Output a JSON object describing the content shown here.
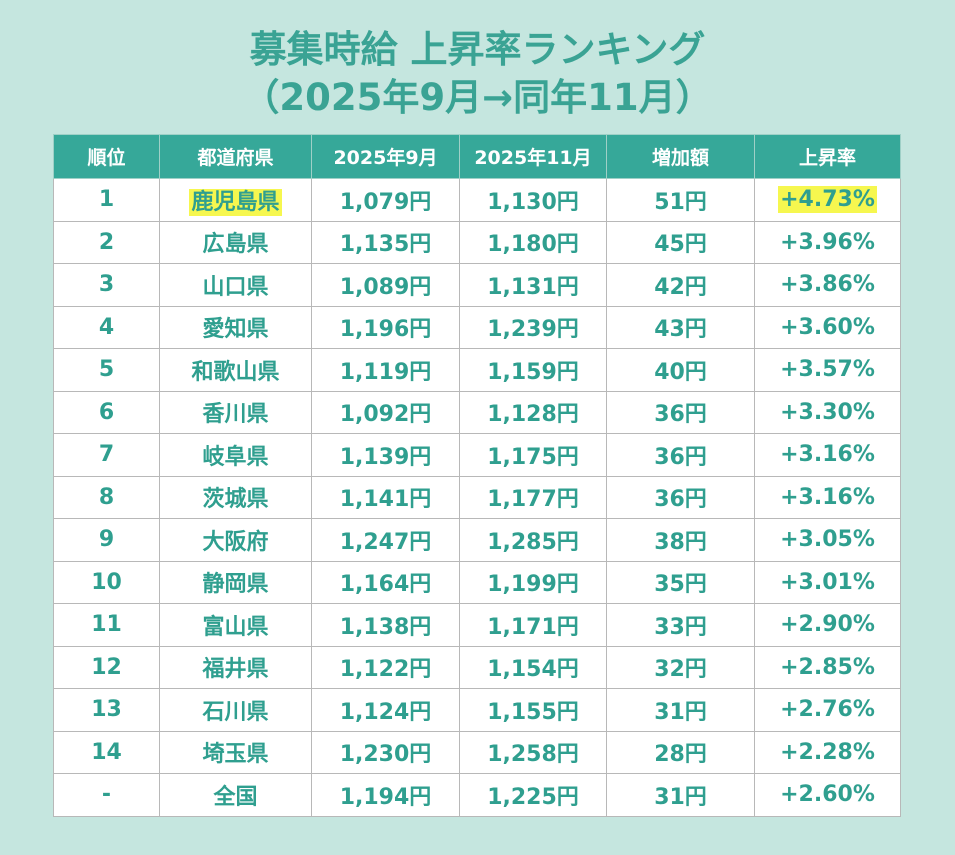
{
  "title_line1": "募集時給 上昇率ランキング",
  "title_line2": "（2025年9月→同年11月）",
  "colors": {
    "background": "#c5e6df",
    "header": "#36a899",
    "text": "#2f9f8f",
    "highlight": "#f6f74f"
  },
  "chart_data": {
    "type": "table",
    "columns": [
      "順位",
      "都道府県",
      "2025年9月",
      "2025年11月",
      "増加額",
      "上昇率"
    ],
    "rows": [
      [
        "1",
        "鹿児島県",
        "1,079円",
        "1,130円",
        "51円",
        "+4.73%"
      ],
      [
        "2",
        "広島県",
        "1,135円",
        "1,180円",
        "45円",
        "+3.96%"
      ],
      [
        "3",
        "山口県",
        "1,089円",
        "1,131円",
        "42円",
        "+3.86%"
      ],
      [
        "4",
        "愛知県",
        "1,196円",
        "1,239円",
        "43円",
        "+3.60%"
      ],
      [
        "5",
        "和歌山県",
        "1,119円",
        "1,159円",
        "40円",
        "+3.57%"
      ],
      [
        "6",
        "香川県",
        "1,092円",
        "1,128円",
        "36円",
        "+3.30%"
      ],
      [
        "7",
        "岐阜県",
        "1,139円",
        "1,175円",
        "36円",
        "+3.16%"
      ],
      [
        "8",
        "茨城県",
        "1,141円",
        "1,177円",
        "36円",
        "+3.16%"
      ],
      [
        "9",
        "大阪府",
        "1,247円",
        "1,285円",
        "38円",
        "+3.05%"
      ],
      [
        "10",
        "静岡県",
        "1,164円",
        "1,199円",
        "35円",
        "+3.01%"
      ],
      [
        "11",
        "富山県",
        "1,138円",
        "1,171円",
        "33円",
        "+2.90%"
      ],
      [
        "12",
        "福井県",
        "1,122円",
        "1,154円",
        "32円",
        "+2.85%"
      ],
      [
        "13",
        "石川県",
        "1,124円",
        "1,155円",
        "31円",
        "+2.76%"
      ],
      [
        "14",
        "埼玉県",
        "1,230円",
        "1,258円",
        "28円",
        "+2.28%"
      ],
      [
        "-",
        "全国",
        "1,194円",
        "1,225円",
        "31円",
        "+2.60%"
      ]
    ],
    "highlighted_cells": [
      [
        0,
        1
      ],
      [
        0,
        5
      ]
    ]
  }
}
